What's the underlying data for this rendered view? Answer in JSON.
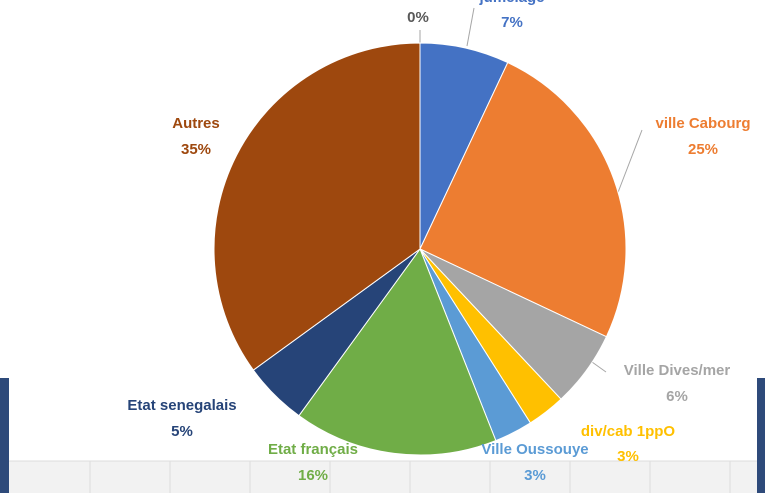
{
  "chart_data": {
    "type": "pie",
    "categories": [
      null,
      "jumelage",
      "ville Cabourg",
      "Ville Dives/mer",
      "div/cab 1ppO",
      "Ville Oussouye",
      "Etat français",
      "Etat senegalais",
      "Autres"
    ],
    "values": [
      0,
      7,
      25,
      6,
      3,
      3,
      16,
      5,
      35
    ],
    "value_labels": [
      "0%",
      "7%",
      "25%",
      "6%",
      "3%",
      "3%",
      "16%",
      "5%",
      "35%"
    ],
    "colors": [
      "#7f7f7f",
      "#4472c4",
      "#ed7d31",
      "#a5a5a5",
      "#ffc000",
      "#5b9bd5",
      "#70ad47",
      "#264478",
      "#9e480e"
    ]
  }
}
